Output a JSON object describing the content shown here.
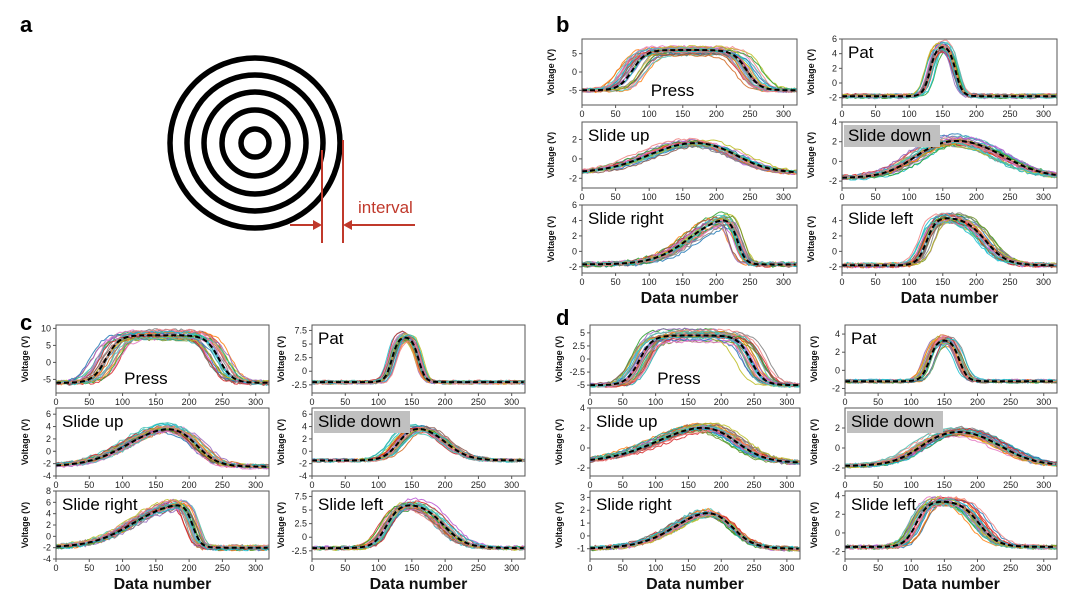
{
  "colors": {
    "interval_annotation": "#c0392b",
    "rings": "#000000",
    "mean_curve": "#000000",
    "slide_down_label_bg": "#c0c0c0",
    "trace_palette": [
      "#1f77b4",
      "#ff7f0e",
      "#2ca02c",
      "#d62728",
      "#9467bd",
      "#8c564b",
      "#e377c2",
      "#7f7f7f",
      "#bcbd22",
      "#17becf",
      "#4bc6b9",
      "#f08080",
      "#6b8e23",
      "#ba55d3",
      "#d2691e",
      "#20b2aa"
    ]
  },
  "panel_letters": {
    "a": "a",
    "b": "b",
    "c": "c",
    "d": "d"
  },
  "panel_a": {
    "icon": "concentric-rings-electrode-icon",
    "ring_count": 5,
    "annotation": "interval"
  },
  "common": {
    "ylabel": "Voltage (V)",
    "xlabel": "Data number",
    "xticks": [
      0,
      50,
      100,
      150,
      200,
      250,
      300
    ],
    "xlim": [
      0,
      320
    ]
  },
  "chart_data": [
    {
      "panel": "b",
      "type": "line",
      "title": "Press",
      "ylim": [
        -9,
        9
      ],
      "yticks": [
        5,
        0,
        -5
      ],
      "base": -5,
      "peak": 6,
      "center": 160,
      "width": 170,
      "tr": 10,
      "skew": 0,
      "spread_c": 22,
      "spread_w": 14,
      "noise": 1.0,
      "ntraces": 28
    },
    {
      "panel": "b",
      "type": "line",
      "title": "Pat",
      "ylim": [
        -3,
        6
      ],
      "yticks": [
        6,
        4,
        2,
        0,
        -2
      ],
      "base": -1.8,
      "peak": 5.2,
      "center": 150,
      "width": 38,
      "tr": 5,
      "skew": 0,
      "spread_c": 6,
      "spread_w": 7,
      "noise": 0.7,
      "ntraces": 28
    },
    {
      "panel": "b",
      "type": "line",
      "title": "Slide up",
      "ylim": [
        -3,
        3.8
      ],
      "yticks": [
        2,
        0,
        -2
      ],
      "base": -1.5,
      "peak": 2.5,
      "center": 165,
      "width": 125,
      "tr": 30,
      "skew": 10,
      "spread_c": 14,
      "spread_w": 14,
      "noise": 1.0,
      "ntraces": 28
    },
    {
      "panel": "b",
      "type": "line",
      "title": "Slide down",
      "ylim": [
        -2.7,
        4
      ],
      "yticks": [
        4,
        2,
        0,
        -2
      ],
      "base": -1.7,
      "peak": 2.8,
      "center": 175,
      "width": 130,
      "tr": 28,
      "skew": -8,
      "spread_c": 14,
      "spread_w": 14,
      "noise": 1.0,
      "ntraces": 28
    },
    {
      "panel": "b",
      "type": "line",
      "title": "Slide right",
      "ylim": [
        -2.8,
        6
      ],
      "yticks": [
        6,
        4,
        2,
        0,
        -2
      ],
      "base": -1.7,
      "peak": 5,
      "center": 195,
      "width": 72,
      "tr": 14,
      "skew": 24,
      "spread_c": 10,
      "spread_w": 10,
      "noise": 1.0,
      "ntraces": 28
    },
    {
      "panel": "b",
      "type": "line",
      "title": "Slide left",
      "ylim": [
        -2.8,
        6
      ],
      "yticks": [
        4,
        2,
        0,
        -2
      ],
      "base": -1.8,
      "peak": 4.5,
      "center": 170,
      "width": 88,
      "tr": 12,
      "skew": -10,
      "spread_c": 12,
      "spread_w": 10,
      "noise": 1.0,
      "ntraces": 28
    },
    {
      "panel": "c",
      "type": "line",
      "title": "Press",
      "ylim": [
        -9,
        11
      ],
      "yticks": [
        10,
        5,
        0,
        -5
      ],
      "base": -6,
      "peak": 8,
      "center": 160,
      "width": 170,
      "tr": 10,
      "skew": 0,
      "spread_c": 20,
      "spread_w": 14,
      "noise": 1.0,
      "ntraces": 28
    },
    {
      "panel": "c",
      "type": "line",
      "title": "Pat",
      "ylim": [
        -4,
        8.5
      ],
      "yticks": [
        7.5,
        5.0,
        2.5,
        0.0,
        -2.5
      ],
      "base": -2,
      "peak": 6.5,
      "center": 140,
      "width": 40,
      "tr": 5,
      "skew": 0,
      "spread_c": 6,
      "spread_w": 7,
      "noise": 0.7,
      "ntraces": 28
    },
    {
      "panel": "c",
      "type": "line",
      "title": "Slide up",
      "ylim": [
        -4,
        7
      ],
      "yticks": [
        6,
        4,
        2,
        0,
        -2,
        -4
      ],
      "base": -2.5,
      "peak": 5,
      "center": 160,
      "width": 100,
      "tr": 22,
      "skew": 18,
      "spread_c": 12,
      "spread_w": 12,
      "noise": 1.0,
      "ntraces": 28
    },
    {
      "panel": "c",
      "type": "line",
      "title": "Slide down",
      "ylim": [
        -4,
        7
      ],
      "yticks": [
        6,
        4,
        2,
        0,
        -2,
        -4
      ],
      "base": -1.5,
      "peak": 4.5,
      "center": 165,
      "width": 70,
      "tr": 15,
      "skew": -8,
      "spread_c": 10,
      "spread_w": 10,
      "noise": 1.0,
      "ntraces": 28
    },
    {
      "panel": "c",
      "type": "line",
      "title": "Slide right",
      "ylim": [
        -4,
        8
      ],
      "yticks": [
        8,
        6,
        4,
        2,
        0,
        -2,
        -4
      ],
      "base": -2,
      "peak": 6.5,
      "center": 160,
      "width": 90,
      "tr": 16,
      "skew": 30,
      "spread_c": 10,
      "spread_w": 10,
      "noise": 1.2,
      "ntraces": 28
    },
    {
      "panel": "c",
      "type": "line",
      "title": "Slide left",
      "ylim": [
        -4,
        8.5
      ],
      "yticks": [
        7.5,
        5.0,
        2.5,
        0.0,
        -2.5
      ],
      "base": -2,
      "peak": 6.5,
      "center": 155,
      "width": 85,
      "tr": 14,
      "skew": -8,
      "spread_c": 10,
      "spread_w": 10,
      "noise": 1.0,
      "ntraces": 28
    },
    {
      "panel": "d",
      "type": "line",
      "title": "Press",
      "ylim": [
        -6.5,
        6.5
      ],
      "yticks": [
        5.0,
        2.5,
        0.0,
        -2.5,
        -5.0
      ],
      "base": -5,
      "peak": 4.5,
      "center": 160,
      "width": 170,
      "tr": 10,
      "skew": 0,
      "spread_c": 20,
      "spread_w": 14,
      "noise": 0.8,
      "ntraces": 28
    },
    {
      "panel": "d",
      "type": "line",
      "title": "Pat",
      "ylim": [
        -2.5,
        5
      ],
      "yticks": [
        4,
        2,
        0,
        -2
      ],
      "base": -1.2,
      "peak": 3.5,
      "center": 150,
      "width": 45,
      "tr": 6,
      "skew": 0,
      "spread_c": 8,
      "spread_w": 8,
      "noise": 0.7,
      "ntraces": 28
    },
    {
      "panel": "d",
      "type": "line",
      "title": "Slide up",
      "ylim": [
        -2.8,
        4
      ],
      "yticks": [
        4,
        2,
        0,
        -2
      ],
      "base": -1.5,
      "peak": 3.3,
      "center": 165,
      "width": 110,
      "tr": 30,
      "skew": 22,
      "spread_c": 12,
      "spread_w": 12,
      "noise": 1.0,
      "ntraces": 28
    },
    {
      "panel": "d",
      "type": "line",
      "title": "Slide down",
      "ylim": [
        -2.8,
        4
      ],
      "yticks": [
        2,
        0,
        -2
      ],
      "base": -1.8,
      "peak": 2.2,
      "center": 175,
      "width": 120,
      "tr": 25,
      "skew": -6,
      "spread_c": 12,
      "spread_w": 12,
      "noise": 1.0,
      "ntraces": 28
    },
    {
      "panel": "d",
      "type": "line",
      "title": "Slide right",
      "ylim": [
        -1.8,
        3.5
      ],
      "yticks": [
        3,
        2,
        1,
        0,
        -1
      ],
      "base": -1,
      "peak": 2.8,
      "center": 175,
      "width": 80,
      "tr": 22,
      "skew": 16,
      "spread_c": 10,
      "spread_w": 10,
      "noise": 1.0,
      "ntraces": 28
    },
    {
      "panel": "d",
      "type": "line",
      "title": "Slide left",
      "ylim": [
        -2.8,
        4.5
      ],
      "yticks": [
        4,
        2,
        0,
        -2
      ],
      "base": -1.5,
      "peak": 3.5,
      "center": 155,
      "width": 95,
      "tr": 12,
      "skew": -6,
      "spread_c": 12,
      "spread_w": 10,
      "noise": 1.0,
      "ntraces": 28
    }
  ]
}
